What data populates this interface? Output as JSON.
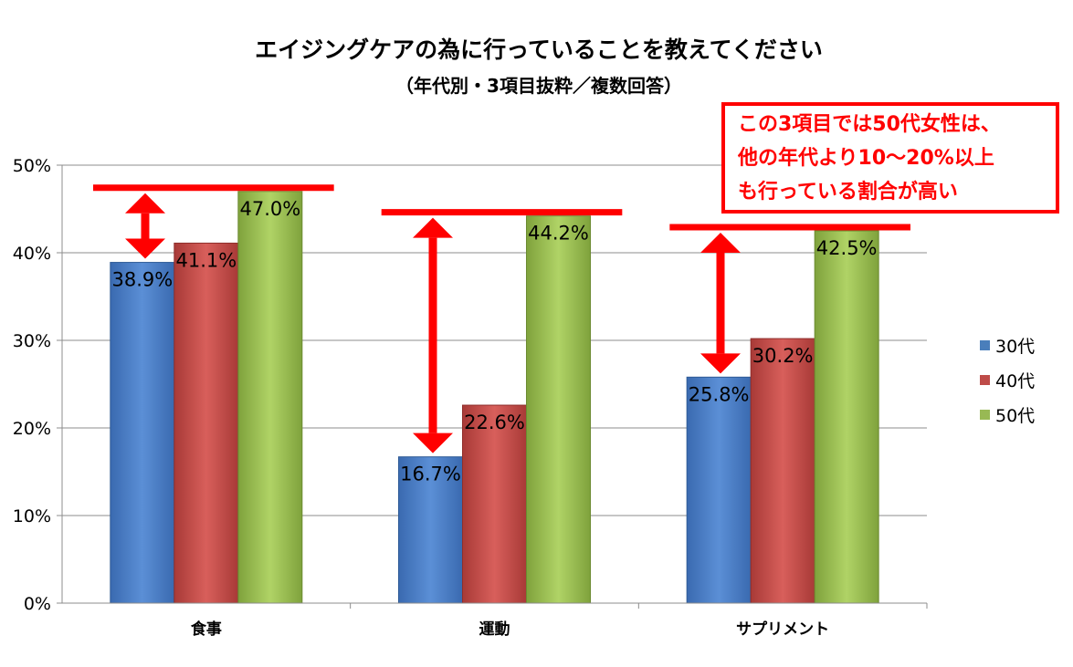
{
  "chart_data": {
    "type": "bar",
    "title": "エイジングケアの為に行っていることを教えてください",
    "subtitle": "（年代別・3項目抜粋／複数回答）",
    "categories": [
      "食事",
      "運動",
      "サプリメント"
    ],
    "series": [
      {
        "name": "30代",
        "values": [
          38.9,
          16.7,
          25.8
        ],
        "color": "#4a7ebb"
      },
      {
        "name": "40代",
        "values": [
          41.1,
          22.6,
          30.2
        ],
        "color": "#be4b48"
      },
      {
        "name": "50代",
        "values": [
          47.0,
          44.2,
          42.5
        ],
        "color": "#98b954"
      }
    ],
    "data_labels": [
      [
        "38.9%",
        "16.7%",
        "25.8%"
      ],
      [
        "41.1%",
        "22.6%",
        "30.2%"
      ],
      [
        "47.0%",
        "44.2%",
        "42.5%"
      ]
    ],
    "ylim": [
      0,
      50
    ],
    "yticks": [
      0,
      10,
      20,
      30,
      40,
      50
    ],
    "ytick_labels": [
      "0%",
      "10%",
      "20%",
      "30%",
      "40%",
      "50%"
    ],
    "grid": true,
    "legend": "right",
    "annotation": {
      "lines": [
        "この3項目では50代女性は、",
        "他の年代より10～20%以上",
        "も行っている割合が高い"
      ],
      "color": "#ff0000"
    }
  }
}
